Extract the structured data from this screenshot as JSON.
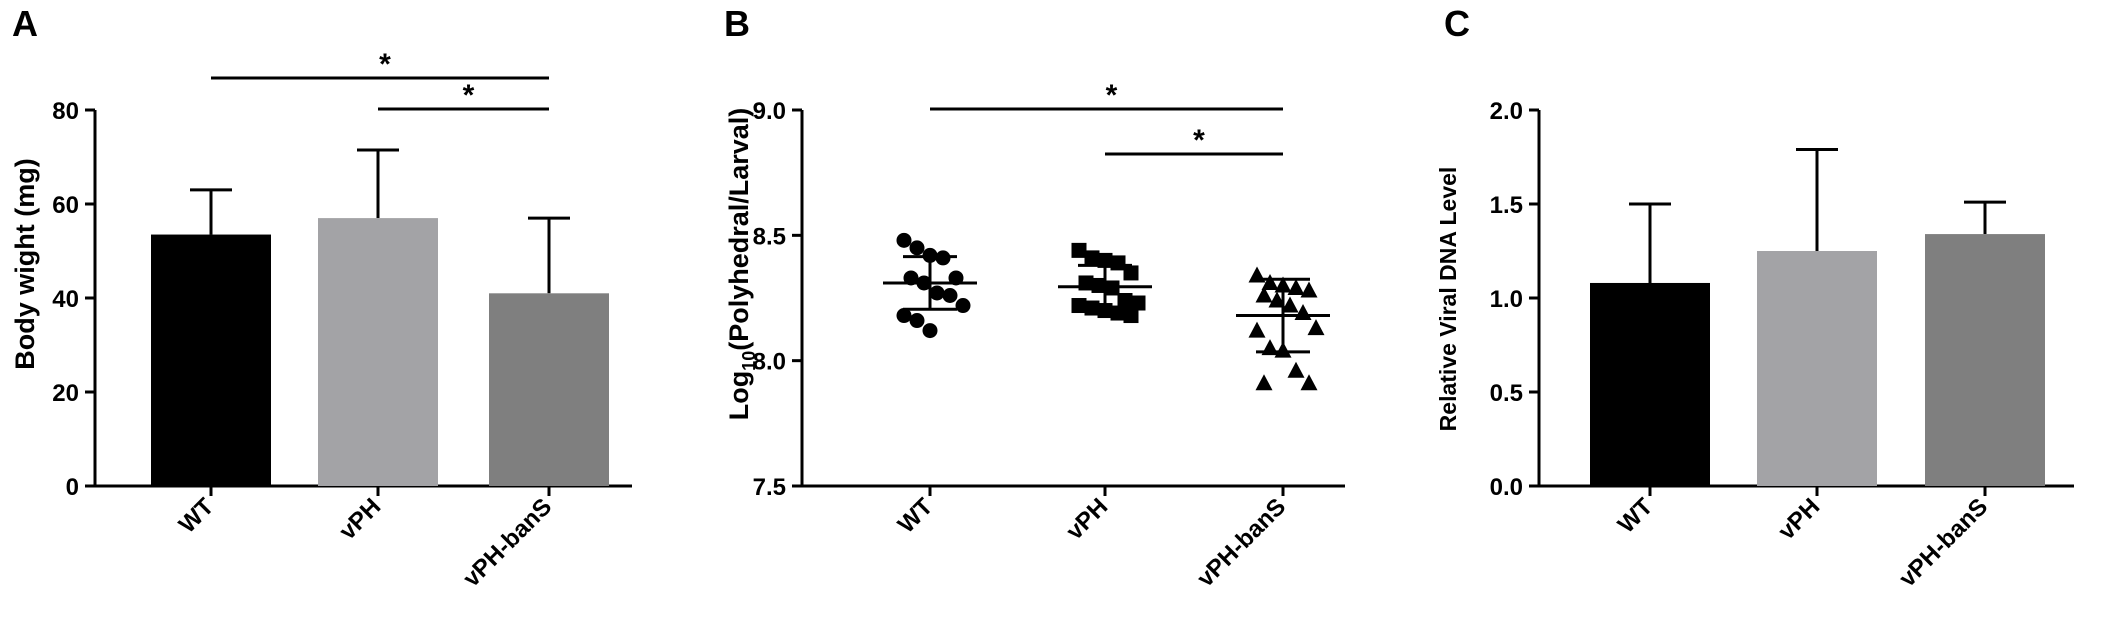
{
  "chart_data": [
    {
      "panel": "A",
      "type": "bar",
      "categories": [
        "WT",
        "vPH",
        "vPH-banS"
      ],
      "values": [
        53.5,
        57,
        41
      ],
      "error": [
        9.5,
        14.5,
        16
      ],
      "colors": [
        "#000000",
        "#a3a3a6",
        "#7f7f7f"
      ],
      "ylabel": "Body wight (mg)",
      "ylim": [
        0,
        80
      ],
      "yticks": [
        0,
        20,
        40,
        60,
        80
      ],
      "yticklabels": [
        "0",
        "20",
        "40",
        "60",
        "80"
      ],
      "significance": [
        {
          "from": "WT",
          "to": "vPH-banS",
          "label": "*"
        },
        {
          "from": "vPH",
          "to": "vPH-banS",
          "label": "*"
        }
      ]
    },
    {
      "panel": "B",
      "type": "scatter",
      "categories": [
        "WT",
        "vPH",
        "vPH-banS"
      ],
      "markers": [
        "circle",
        "square",
        "triangle"
      ],
      "ylabel": {
        "main": "Log",
        "subscript": "10",
        "rest": "(Polyhedral/Larval)"
      },
      "ylim": [
        7.5,
        9.0
      ],
      "yticks": [
        7.5,
        8.0,
        8.5,
        9.0
      ],
      "yticklabels": [
        "7.5",
        "8.0",
        "8.5",
        "9.0"
      ],
      "series": [
        {
          "category": "WT",
          "mean": 8.31,
          "sd": 0.105,
          "values": [
            8.48,
            8.45,
            8.42,
            8.41,
            8.33,
            8.33,
            8.31,
            8.27,
            8.26,
            8.22,
            8.18,
            8.16,
            8.12
          ]
        },
        {
          "category": "vPH",
          "mean": 8.295,
          "sd": 0.085,
          "values": [
            8.44,
            8.41,
            8.4,
            8.39,
            8.35,
            8.31,
            8.3,
            8.29,
            8.24,
            8.23,
            8.22,
            8.21,
            8.2,
            8.19,
            8.18
          ]
        },
        {
          "category": "vPH-banS",
          "mean": 8.18,
          "sd": 0.145,
          "values": [
            8.34,
            8.31,
            8.3,
            8.29,
            8.28,
            8.26,
            8.24,
            8.22,
            8.19,
            8.13,
            8.12,
            8.05,
            8.04,
            7.96,
            7.91,
            7.91
          ]
        }
      ],
      "significance": [
        {
          "from": "WT",
          "to": "vPH-banS",
          "label": "*"
        },
        {
          "from": "vPH",
          "to": "vPH-banS",
          "label": "*"
        }
      ]
    },
    {
      "panel": "C",
      "type": "bar",
      "categories": [
        "WT",
        "vPH",
        "vPH-banS"
      ],
      "values": [
        1.08,
        1.25,
        1.34
      ],
      "error": [
        0.42,
        0.54,
        0.17
      ],
      "colors": [
        "#000000",
        "#a3a3a6",
        "#7f7f7f"
      ],
      "ylabel": "Relative Viral DNA Level",
      "ylim": [
        0,
        2.0
      ],
      "yticks": [
        0,
        0.5,
        1.0,
        1.5,
        2.0
      ],
      "yticklabels": [
        "0.0",
        "0.5",
        "1.0",
        "1.5",
        "2.0"
      ]
    }
  ]
}
